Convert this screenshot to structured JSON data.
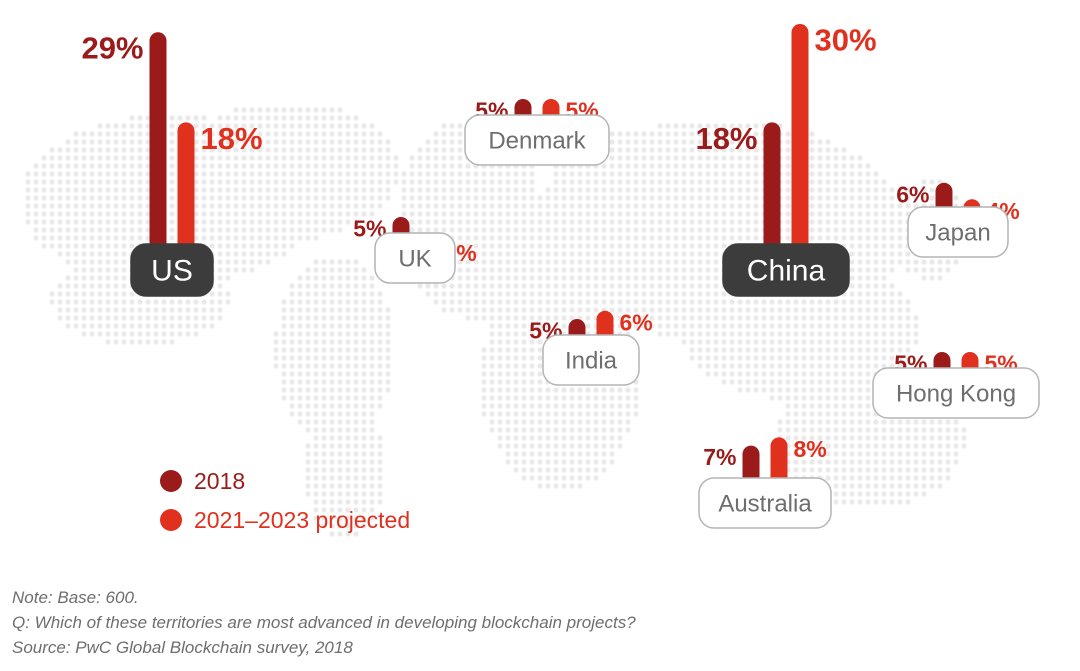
{
  "chart_data": {
    "type": "bar",
    "title": "",
    "value_unit": "%",
    "series": [
      {
        "name": "2018",
        "color": "#9b1b1b"
      },
      {
        "name": "2021–2023 projected",
        "color": "#e0301e"
      }
    ],
    "regions": [
      {
        "name": "US",
        "values": [
          29,
          18
        ],
        "highlight": true
      },
      {
        "name": "UK",
        "values": [
          5,
          2
        ],
        "highlight": false
      },
      {
        "name": "Denmark",
        "values": [
          5,
          5
        ],
        "highlight": false
      },
      {
        "name": "India",
        "values": [
          5,
          6
        ],
        "highlight": false
      },
      {
        "name": "China",
        "values": [
          18,
          30
        ],
        "highlight": true
      },
      {
        "name": "Japan",
        "values": [
          6,
          4
        ],
        "highlight": false
      },
      {
        "name": "Hong Kong",
        "values": [
          5,
          5
        ],
        "highlight": false
      },
      {
        "name": "Australia",
        "values": [
          7,
          8
        ],
        "highlight": false
      }
    ],
    "background": "world-map-dot-pattern"
  },
  "legend": {
    "items": [
      "2018",
      "2021–2023 projected"
    ]
  },
  "notes": {
    "note": "Note: Base: 600.",
    "question": "Q: Which of these territories are most advanced in developing blockchain projects?",
    "source": "Source: PwC Global Blockchain survey, 2018"
  },
  "colors": {
    "dark_red": "#9b1b1b",
    "red": "#e0301e",
    "highlight_box": "#3c3c3c",
    "box_border": "#b4b4b4",
    "box_text": "#6e6e6e",
    "map_dots": "#e9e9e9"
  }
}
